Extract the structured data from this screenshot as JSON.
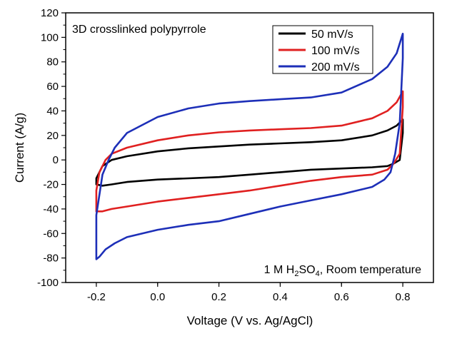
{
  "chart_data": {
    "type": "line",
    "xlabel": "Voltage (V vs. Ag/AgCl)",
    "ylabel": "Current (A/g)",
    "xlim": [
      -0.3,
      0.9
    ],
    "ylim": [
      -100,
      120
    ],
    "xticks": [
      -0.2,
      0.0,
      0.2,
      0.4,
      0.6,
      0.8
    ],
    "xtick_labels": [
      "-0.2",
      "0.0",
      "0.2",
      "0.4",
      "0.6",
      "0.8"
    ],
    "yticks": [
      -100,
      -80,
      -60,
      -40,
      -20,
      0,
      20,
      40,
      60,
      80,
      100,
      120
    ],
    "ytick_labels": [
      "-100",
      "-80",
      "-60",
      "-40",
      "-20",
      "0",
      "20",
      "40",
      "60",
      "80",
      "100",
      "120"
    ],
    "annotation_title": "3D crosslinked polypyrrole",
    "annotation_condition": {
      "prefix": "1 M H",
      "sub1": "2",
      "mid": "SO",
      "sub2": "4",
      "suffix": ", Room temperature"
    },
    "legend_position": "top-right",
    "grid": false,
    "series": [
      {
        "name": "50 mV/s",
        "color": "#000000",
        "x": [
          -0.2,
          -0.18,
          -0.15,
          -0.1,
          0.0,
          0.1,
          0.2,
          0.3,
          0.4,
          0.5,
          0.6,
          0.7,
          0.75,
          0.78,
          0.8,
          0.8,
          0.79,
          0.77,
          0.75,
          0.7,
          0.6,
          0.5,
          0.4,
          0.3,
          0.2,
          0.1,
          0.0,
          -0.1,
          -0.15,
          -0.18,
          -0.2,
          -0.2
        ],
        "y": [
          -15,
          -5,
          0,
          3,
          7,
          9.5,
          11,
          12.5,
          13.5,
          14.5,
          16,
          20,
          24,
          28,
          33,
          22,
          0,
          -3,
          -5,
          -6,
          -7,
          -8,
          -10,
          -12,
          -14,
          -15,
          -16,
          -18,
          -20,
          -21,
          -20,
          -15
        ]
      },
      {
        "name": "100 mV/s",
        "color": "#e02020",
        "x": [
          -0.2,
          -0.19,
          -0.17,
          -0.15,
          -0.1,
          0.0,
          0.1,
          0.2,
          0.3,
          0.4,
          0.5,
          0.6,
          0.7,
          0.75,
          0.78,
          0.8,
          0.8,
          0.79,
          0.77,
          0.75,
          0.7,
          0.6,
          0.5,
          0.4,
          0.3,
          0.2,
          0.1,
          0.0,
          -0.1,
          -0.15,
          -0.18,
          -0.2,
          -0.2
        ],
        "y": [
          -25,
          -10,
          0,
          5,
          10,
          16,
          20,
          22.5,
          24,
          25,
          26,
          28,
          34,
          40,
          47,
          56,
          43,
          5,
          -3,
          -8,
          -12,
          -14,
          -17,
          -21,
          -25,
          -28,
          -31,
          -34,
          -38,
          -40,
          -42,
          -42,
          -25
        ]
      },
      {
        "name": "200 mV/s",
        "color": "#1d2fb8",
        "x": [
          -0.2,
          -0.18,
          -0.16,
          -0.14,
          -0.1,
          0.0,
          0.1,
          0.2,
          0.3,
          0.4,
          0.5,
          0.6,
          0.7,
          0.75,
          0.78,
          0.8,
          0.8,
          0.79,
          0.775,
          0.76,
          0.74,
          0.7,
          0.6,
          0.5,
          0.4,
          0.3,
          0.2,
          0.1,
          0.0,
          -0.1,
          -0.14,
          -0.17,
          -0.19,
          -0.2,
          -0.2
        ],
        "y": [
          -45,
          -12,
          0,
          10,
          22,
          35,
          42,
          46,
          48,
          49.5,
          51,
          55,
          66,
          76,
          87,
          103,
          83,
          30,
          5,
          -10,
          -16,
          -22,
          -28,
          -33,
          -38,
          -44,
          -50,
          -53,
          -57,
          -63,
          -68,
          -73,
          -79,
          -81,
          -45
        ]
      }
    ]
  }
}
